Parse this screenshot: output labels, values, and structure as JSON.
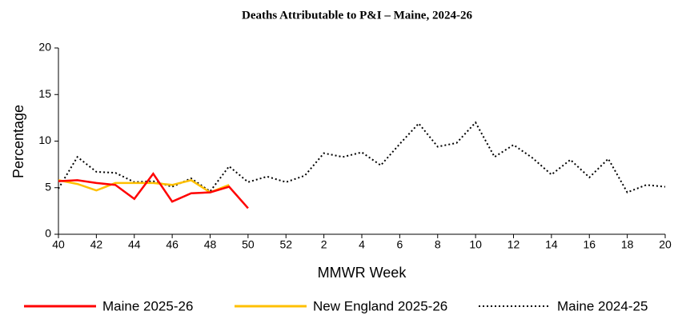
{
  "chart_data": {
    "type": "line",
    "title": "Deaths Attributable to P&I – Maine, 2024-26",
    "x_label": "MMWR Week",
    "y_label": "Percentage",
    "categories": [
      "40",
      null,
      "42",
      null,
      "44",
      null,
      "46",
      null,
      "48",
      null,
      "50",
      null,
      "52",
      null,
      "2",
      null,
      "4",
      null,
      "6",
      null,
      "8",
      null,
      "10",
      null,
      "12",
      null,
      "14",
      null,
      "16",
      null,
      "18",
      null,
      "20"
    ],
    "series": [
      {
        "name": "Maine 2025-26",
        "color": "#ff0000",
        "style": "solid",
        "values": [
          5.7,
          5.8,
          5.5,
          5.3,
          3.8,
          6.5,
          3.5,
          4.4,
          4.5,
          5.1,
          2.8,
          null,
          null,
          null,
          null,
          null,
          null,
          null,
          null,
          null,
          null,
          null,
          null,
          null,
          null,
          null,
          null,
          null,
          null,
          null,
          null,
          null,
          null
        ]
      },
      {
        "name": "New England 2025-26",
        "color": "#ffc000",
        "style": "solid",
        "values": [
          5.8,
          5.4,
          4.7,
          5.5,
          5.5,
          5.5,
          5.3,
          5.8,
          4.5,
          5.3,
          null,
          null,
          null,
          null,
          null,
          null,
          null,
          null,
          null,
          null,
          null,
          null,
          null,
          null,
          null,
          null,
          null,
          null,
          null,
          null,
          null,
          null,
          null
        ]
      },
      {
        "name": "Maine 2024-25",
        "color": "#000000",
        "style": "dotted",
        "values": [
          4.9,
          8.3,
          6.7,
          6.6,
          5.6,
          5.7,
          5.1,
          6.0,
          4.6,
          7.3,
          5.6,
          6.2,
          5.6,
          6.3,
          8.7,
          8.3,
          8.8,
          7.4,
          9.7,
          11.9,
          9.4,
          9.8,
          12.0,
          8.3,
          9.6,
          8.2,
          6.4,
          8.0,
          6.1,
          8.1,
          4.5,
          5.3,
          5.1
        ]
      }
    ],
    "ylim": [
      0,
      20
    ],
    "yticks": [
      0,
      5,
      10,
      15,
      20
    ],
    "grid": false,
    "legend": "bottom"
  }
}
